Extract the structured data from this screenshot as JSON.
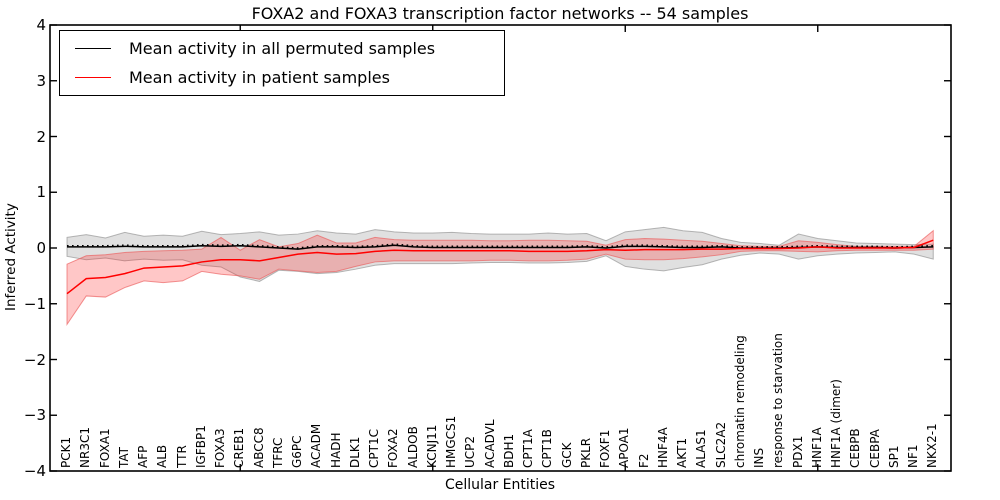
{
  "title": "FOXA2 and FOXA3 transcription factor networks -- 54 samples",
  "legend": {
    "entries": [
      {
        "label": "Mean activity in all permuted samples",
        "color": "#000000"
      },
      {
        "label": "Mean activity in patient samples",
        "color": "#ff0000"
      }
    ]
  },
  "chart_data": {
    "type": "line",
    "title": "FOXA2 and FOXA3 transcription factor networks -- 54 samples",
    "xlabel": "Cellular Entities",
    "ylabel": "Inferred Activity",
    "ylim": [
      -4,
      4
    ],
    "yticks": [
      4,
      3,
      2,
      1,
      0,
      -1,
      -2,
      -3,
      -4
    ],
    "grid": false,
    "legend_position": "upper left",
    "x_major_tick_indices": [
      9,
      19,
      29,
      39
    ],
    "categories": [
      "PCK1",
      "NR3C1",
      "FOXA1",
      "TAT",
      "AFP",
      "ALB",
      "TTR",
      "IGFBP1",
      "FOXA3",
      "CREB1",
      "ABCC8",
      "TFRC",
      "G6PC",
      "ACADM",
      "HADH",
      "DLK1",
      "CPT1C",
      "FOXA2",
      "ALDOB",
      "KCNJ11",
      "HMGCS1",
      "UCP2",
      "ACADVL",
      "BDH1",
      "CPT1A",
      "CPT1B",
      "GCK",
      "PKLR",
      "FOXF1",
      "APOA1",
      "F2",
      "HNF4A",
      "AKT1",
      "ALAS1",
      "SLC2A2",
      "chromatin remodeling",
      "INS",
      "response to starvation",
      "PDX1",
      "HNF1A",
      "HNF1A (dimer)",
      "CEBPB",
      "CEBPA",
      "SP1",
      "NF1",
      "NKX2-1"
    ],
    "series": [
      {
        "name": "Mean activity in all permuted samples",
        "color": "#000000",
        "style": "solid",
        "dotted_overlay": true,
        "values": [
          0.02,
          0.02,
          0.02,
          0.03,
          0.02,
          0.02,
          0.02,
          0.04,
          0.03,
          0.04,
          0.02,
          0.0,
          -0.02,
          0.02,
          0.02,
          0.01,
          0.02,
          0.05,
          0.02,
          0.01,
          0.01,
          0.01,
          0.01,
          0.01,
          0.01,
          0.01,
          0.01,
          0.02,
          0.0,
          0.03,
          0.03,
          0.02,
          0.01,
          0.01,
          0.02,
          0.0,
          0.0,
          0.0,
          0.01,
          0.02,
          0.01,
          0.01,
          0.01,
          0.0,
          0.01,
          0.02
        ]
      },
      {
        "name": "Mean activity in patient samples",
        "color": "#ff0000",
        "style": "solid",
        "dotted_overlay": false,
        "values": [
          -0.82,
          -0.55,
          -0.53,
          -0.46,
          -0.36,
          -0.34,
          -0.32,
          -0.25,
          -0.21,
          -0.21,
          -0.23,
          -0.17,
          -0.11,
          -0.08,
          -0.11,
          -0.1,
          -0.06,
          -0.04,
          -0.05,
          -0.05,
          -0.05,
          -0.05,
          -0.05,
          -0.05,
          -0.06,
          -0.06,
          -0.06,
          -0.05,
          -0.03,
          -0.04,
          -0.03,
          -0.03,
          -0.03,
          -0.02,
          -0.02,
          -0.01,
          -0.01,
          -0.01,
          0.0,
          0.02,
          0.0,
          0.0,
          0.0,
          0.0,
          0.01,
          0.14
        ]
      }
    ],
    "bands": [
      {
        "name": "permuted-samples-confidence-band",
        "fill": "rgba(0,0,0,0.12)",
        "edge": "rgba(125,125,125,0.55)",
        "upper": [
          0.19,
          0.24,
          0.18,
          0.28,
          0.21,
          0.23,
          0.21,
          0.3,
          0.24,
          0.26,
          0.29,
          0.23,
          0.25,
          0.31,
          0.27,
          0.25,
          0.33,
          0.29,
          0.27,
          0.27,
          0.28,
          0.26,
          0.25,
          0.25,
          0.25,
          0.27,
          0.25,
          0.26,
          0.13,
          0.29,
          0.33,
          0.37,
          0.31,
          0.28,
          0.17,
          0.1,
          0.08,
          0.05,
          0.25,
          0.17,
          0.13,
          0.09,
          0.08,
          0.07,
          0.06,
          0.07
        ],
        "lower": [
          -0.15,
          -0.21,
          -0.18,
          -0.23,
          -0.2,
          -0.22,
          -0.21,
          -0.31,
          -0.34,
          -0.52,
          -0.6,
          -0.4,
          -0.42,
          -0.46,
          -0.44,
          -0.38,
          -0.31,
          -0.28,
          -0.28,
          -0.28,
          -0.28,
          -0.27,
          -0.26,
          -0.26,
          -0.27,
          -0.27,
          -0.26,
          -0.24,
          -0.14,
          -0.33,
          -0.38,
          -0.41,
          -0.35,
          -0.3,
          -0.2,
          -0.13,
          -0.09,
          -0.11,
          -0.2,
          -0.14,
          -0.11,
          -0.09,
          -0.08,
          -0.07,
          -0.11,
          -0.2
        ]
      },
      {
        "name": "patient-samples-confidence-band",
        "fill": "rgba(255,30,30,0.25)",
        "edge": "rgba(235,90,90,0.65)",
        "upper": [
          -0.29,
          -0.14,
          -0.12,
          -0.08,
          -0.06,
          -0.05,
          -0.04,
          -0.02,
          0.19,
          -0.04,
          0.15,
          0.02,
          0.08,
          0.23,
          0.09,
          0.09,
          0.19,
          0.15,
          0.14,
          0.14,
          0.14,
          0.14,
          0.13,
          0.13,
          0.14,
          0.14,
          0.13,
          0.12,
          0.05,
          0.15,
          0.17,
          0.16,
          0.14,
          0.12,
          0.08,
          0.04,
          0.03,
          0.03,
          0.13,
          0.1,
          0.06,
          0.03,
          0.03,
          0.03,
          0.03,
          0.31
        ],
        "lower": [
          -1.37,
          -0.86,
          -0.88,
          -0.71,
          -0.59,
          -0.62,
          -0.59,
          -0.42,
          -0.47,
          -0.5,
          -0.56,
          -0.38,
          -0.41,
          -0.44,
          -0.42,
          -0.33,
          -0.25,
          -0.23,
          -0.23,
          -0.23,
          -0.23,
          -0.23,
          -0.22,
          -0.22,
          -0.23,
          -0.23,
          -0.22,
          -0.2,
          -0.11,
          -0.2,
          -0.21,
          -0.21,
          -0.19,
          -0.16,
          -0.12,
          -0.06,
          -0.05,
          -0.05,
          -0.06,
          -0.07,
          -0.05,
          -0.04,
          -0.04,
          -0.04,
          -0.04,
          -0.02
        ]
      }
    ]
  }
}
